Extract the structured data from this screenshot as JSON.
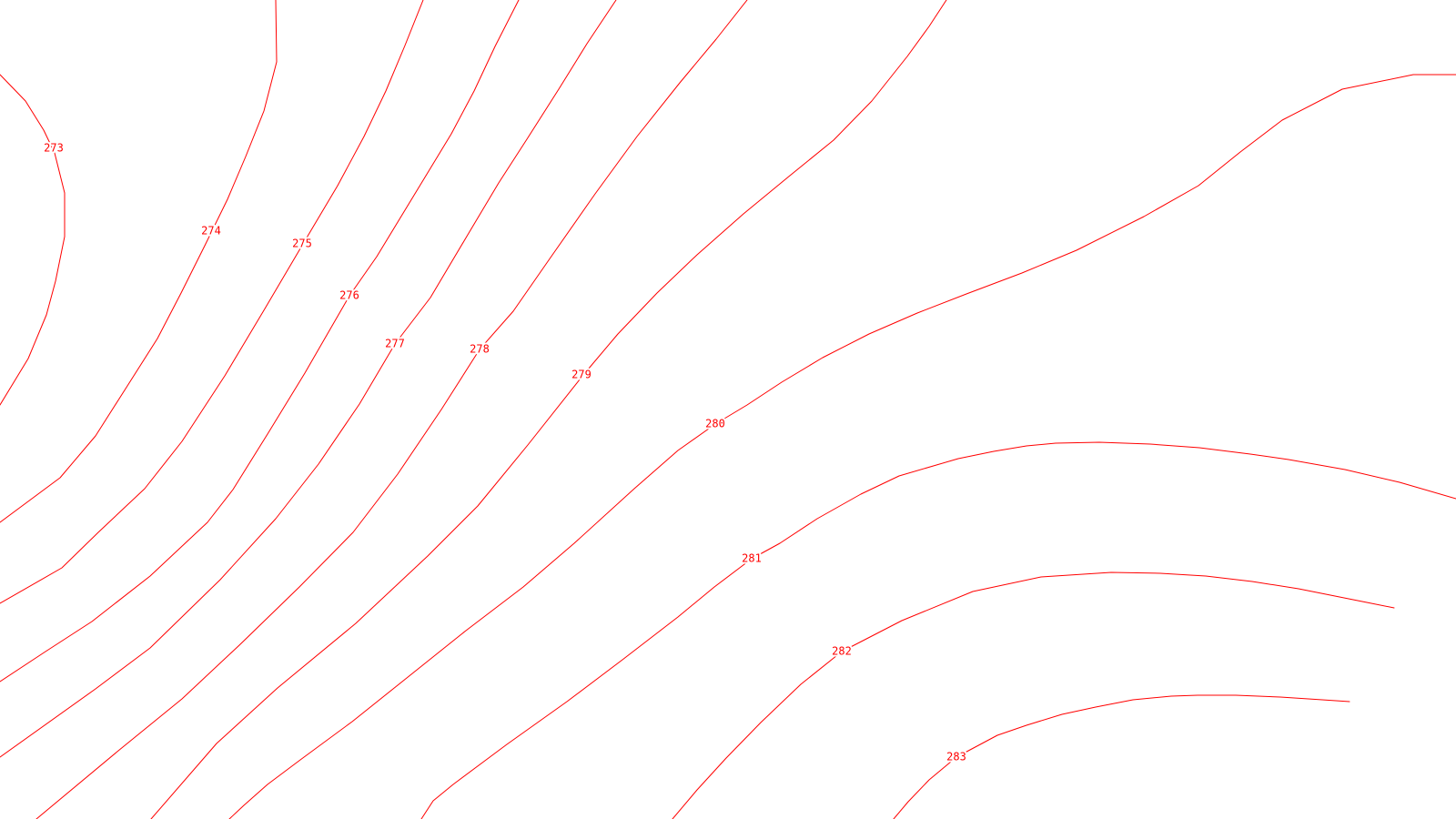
{
  "map": {
    "background_color": "#ffffff",
    "contour_color": "#ff0000",
    "contours": [
      {
        "id": "c273",
        "label": "273"
      },
      {
        "id": "c274",
        "label": "274"
      },
      {
        "id": "c275",
        "label": "275"
      },
      {
        "id": "c276",
        "label": "276"
      },
      {
        "id": "c277",
        "label": "277"
      },
      {
        "id": "c278",
        "label": "278"
      },
      {
        "id": "c279",
        "label": "279"
      },
      {
        "id": "c280",
        "label": "280"
      },
      {
        "id": "c281",
        "label": "281"
      },
      {
        "id": "c282",
        "label": "282"
      },
      {
        "id": "c283",
        "label": "283"
      }
    ]
  }
}
